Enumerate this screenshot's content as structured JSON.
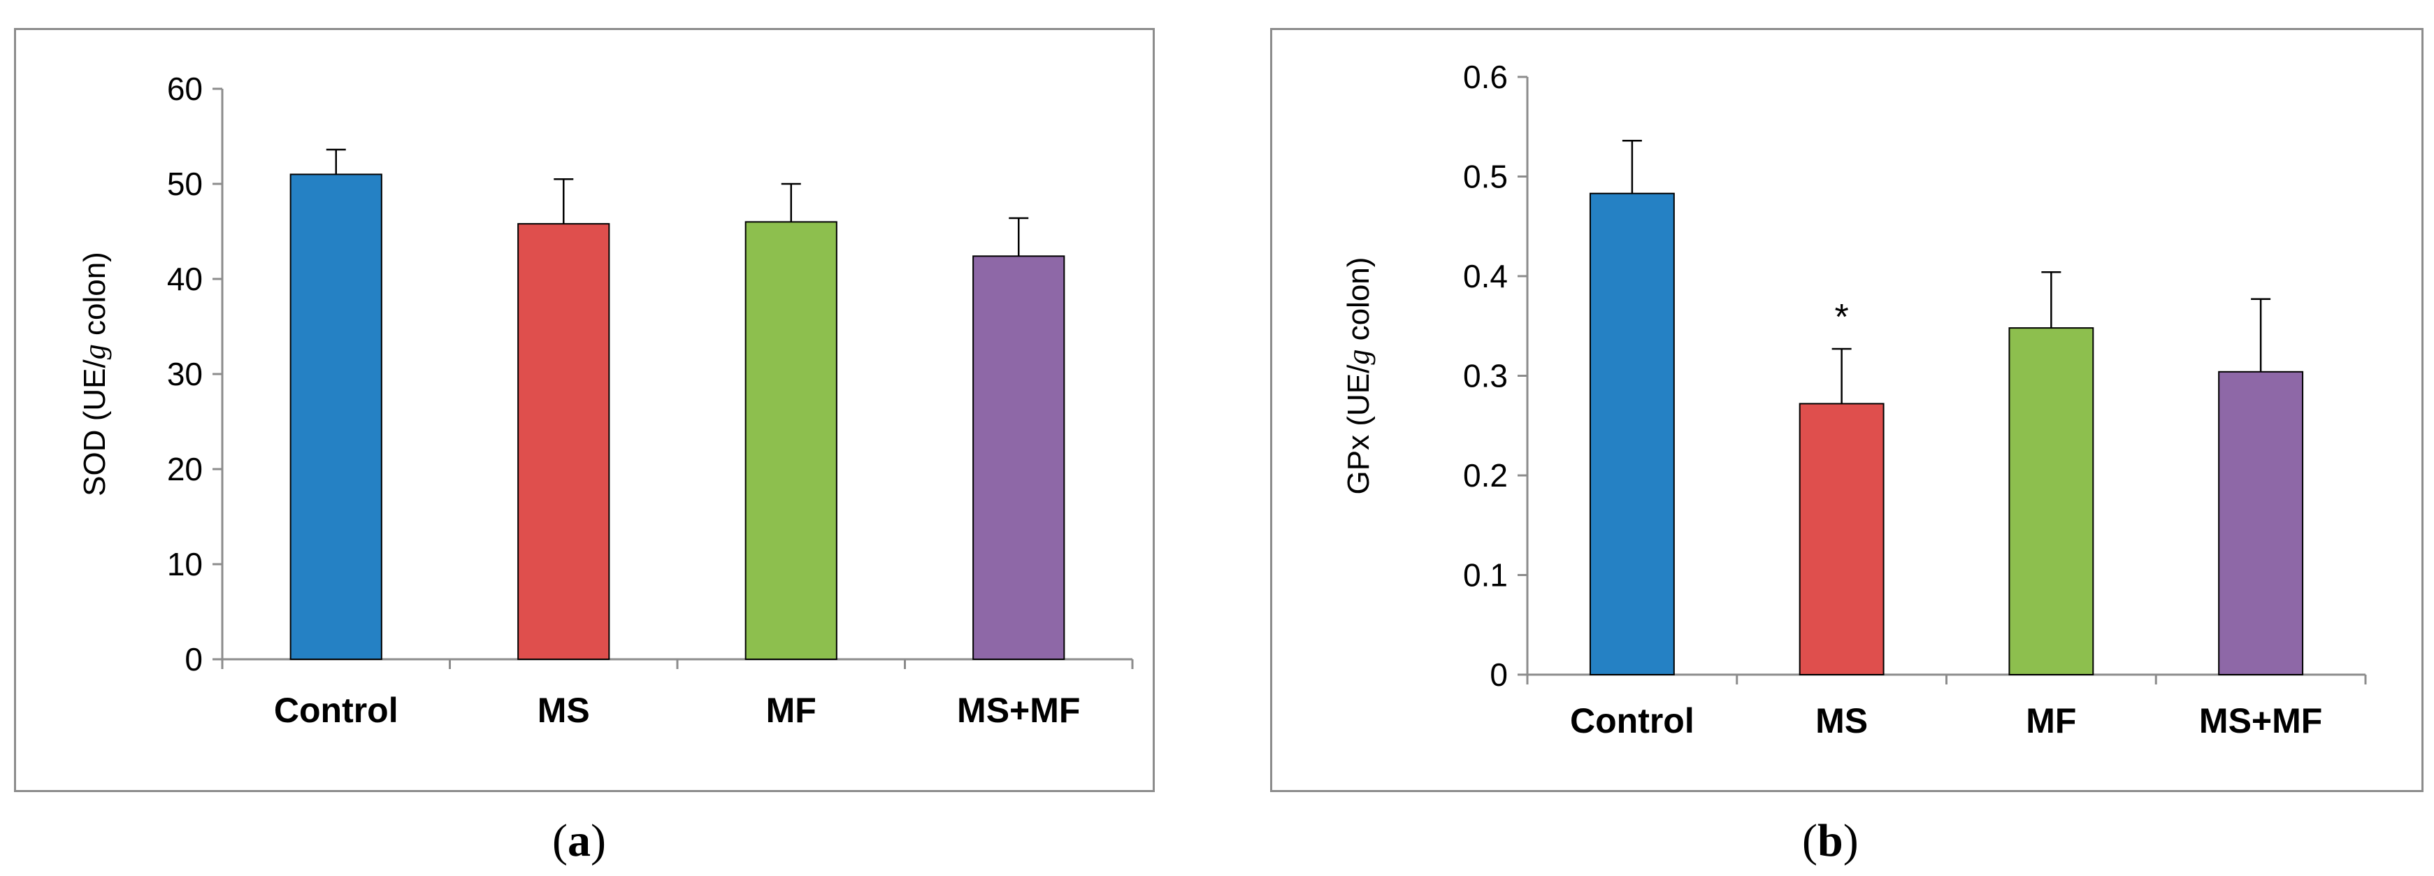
{
  "chart_data": [
    {
      "id": "a",
      "type": "bar",
      "categories": [
        "Control",
        "MS",
        "MF",
        "MS+MF"
      ],
      "values": [
        51.0,
        45.8,
        46.0,
        42.4
      ],
      "errors": [
        2.6,
        4.7,
        4.0,
        4.0
      ],
      "colors": [
        "#2581c4",
        "#df4f4d",
        "#8dbf4e",
        "#8e68a7"
      ],
      "ylabel": "SOD (UE/g colon)",
      "ylabel_parts": {
        "before": "SOD (UE/",
        "italic": "g",
        "after": " colon)"
      },
      "ylim": [
        0,
        60
      ],
      "yticks": [
        0,
        10,
        20,
        30,
        40,
        50,
        60
      ],
      "ytick_labels": [
        "0",
        "10",
        "20",
        "30",
        "40",
        "50",
        "60"
      ],
      "annotations": [
        "",
        "",
        "",
        ""
      ],
      "caption": "a"
    },
    {
      "id": "b",
      "type": "bar",
      "categories": [
        "Control",
        "MS",
        "MF",
        "MS+MF"
      ],
      "values": [
        0.483,
        0.272,
        0.348,
        0.304
      ],
      "errors": [
        0.053,
        0.055,
        0.056,
        0.073
      ],
      "colors": [
        "#2581c4",
        "#df4f4d",
        "#8dbf4e",
        "#8e68a7"
      ],
      "ylabel": "GPx (UE/g colon)",
      "ylabel_parts": {
        "before": "GPx (UE/",
        "italic": "g",
        "after": " colon)"
      },
      "ylim": [
        0,
        0.6
      ],
      "yticks": [
        0,
        0.1,
        0.2,
        0.3,
        0.4,
        0.5,
        0.6
      ],
      "ytick_labels": [
        "0",
        "0.1",
        "0.2",
        "0.3",
        "0.4",
        "0.5",
        "0.6"
      ],
      "annotations": [
        "",
        "*",
        "",
        ""
      ],
      "caption": "b"
    }
  ]
}
